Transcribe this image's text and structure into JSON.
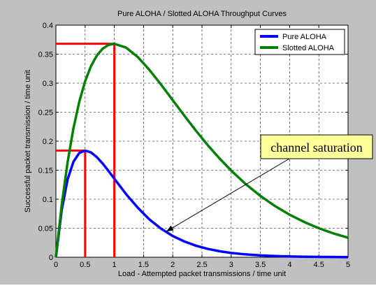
{
  "chart_data": {
    "type": "line",
    "title": "Pure ALOHA / Slotted ALOHA Throughput Curves",
    "xlabel": "Load - Attempted packet transmissions / time unit",
    "ylabel": "Successful packet transmission / time unit",
    "xlim": [
      0,
      5
    ],
    "ylim": [
      0,
      0.4
    ],
    "xticks": [
      0,
      0.5,
      1,
      1.5,
      2,
      2.5,
      3,
      3.5,
      4,
      4.5,
      5
    ],
    "xtick_labels": [
      "0",
      "0.5",
      "1",
      "1.5",
      "2",
      "2.5",
      "3",
      "3.5",
      "4",
      "4.5",
      "5"
    ],
    "yticks": [
      0,
      0.05,
      0.1,
      0.15,
      0.2,
      0.25,
      0.3,
      0.35,
      0.4
    ],
    "ytick_labels": [
      "0",
      "0.05",
      "0.1",
      "0.15",
      "0.2",
      "0.25",
      "0.3",
      "0.35",
      "0.4"
    ],
    "grid": true,
    "legend_position": "top-right",
    "series": [
      {
        "name": "Pure ALOHA",
        "color": "#0000ff",
        "x": [
          0,
          0.1,
          0.2,
          0.3,
          0.4,
          0.5,
          0.6,
          0.7,
          0.8,
          0.9,
          1.0,
          1.2,
          1.4,
          1.6,
          1.8,
          2.0,
          2.2,
          2.4,
          2.6,
          2.8,
          3.0,
          3.25,
          3.5,
          3.75,
          4.0,
          4.25,
          4.5,
          4.75,
          5.0
        ],
        "y": [
          0,
          0.0819,
          0.1341,
          0.1646,
          0.1797,
          0.1839,
          0.1807,
          0.1726,
          0.1615,
          0.1488,
          0.1353,
          0.1089,
          0.0855,
          0.0652,
          0.0492,
          0.0366,
          0.0271,
          0.0198,
          0.0144,
          0.0104,
          0.0074,
          0.0049,
          0.0032,
          0.0021,
          0.0013,
          0.0009,
          0.0006,
          0.0004,
          0.0002
        ]
      },
      {
        "name": "Slotted ALOHA",
        "color": "#008000",
        "x": [
          0,
          0.1,
          0.2,
          0.3,
          0.4,
          0.5,
          0.6,
          0.7,
          0.8,
          0.9,
          1.0,
          1.2,
          1.4,
          1.6,
          1.8,
          2.0,
          2.2,
          2.4,
          2.6,
          2.8,
          3.0,
          3.25,
          3.5,
          3.75,
          4.0,
          4.25,
          4.5,
          4.75,
          5.0
        ],
        "y": [
          0,
          0.0905,
          0.1637,
          0.2222,
          0.2681,
          0.3033,
          0.3293,
          0.3476,
          0.3595,
          0.3659,
          0.3679,
          0.3614,
          0.3452,
          0.323,
          0.2975,
          0.2707,
          0.2438,
          0.2177,
          0.1931,
          0.1703,
          0.1494,
          0.1259,
          0.1057,
          0.0882,
          0.0733,
          0.0607,
          0.05,
          0.0411,
          0.0337
        ]
      }
    ],
    "guides": {
      "color": "#ff0000",
      "lines": [
        {
          "x0": 0,
          "y0": 0.1839,
          "x1": 0.5,
          "y1": 0.1839
        },
        {
          "x0": 0.5,
          "y0": 0.1839,
          "x1": 0.5,
          "y1": 0
        },
        {
          "x0": 0,
          "y0": 0.3679,
          "x1": 1,
          "y1": 0.3679
        },
        {
          "x0": 1,
          "y0": 0.3679,
          "x1": 1,
          "y1": 0
        }
      ]
    },
    "annotation": {
      "text": "channel saturation",
      "box_color": "#ffff99",
      "arrow_target": {
        "x": 1.9,
        "y": 0.045
      }
    }
  }
}
